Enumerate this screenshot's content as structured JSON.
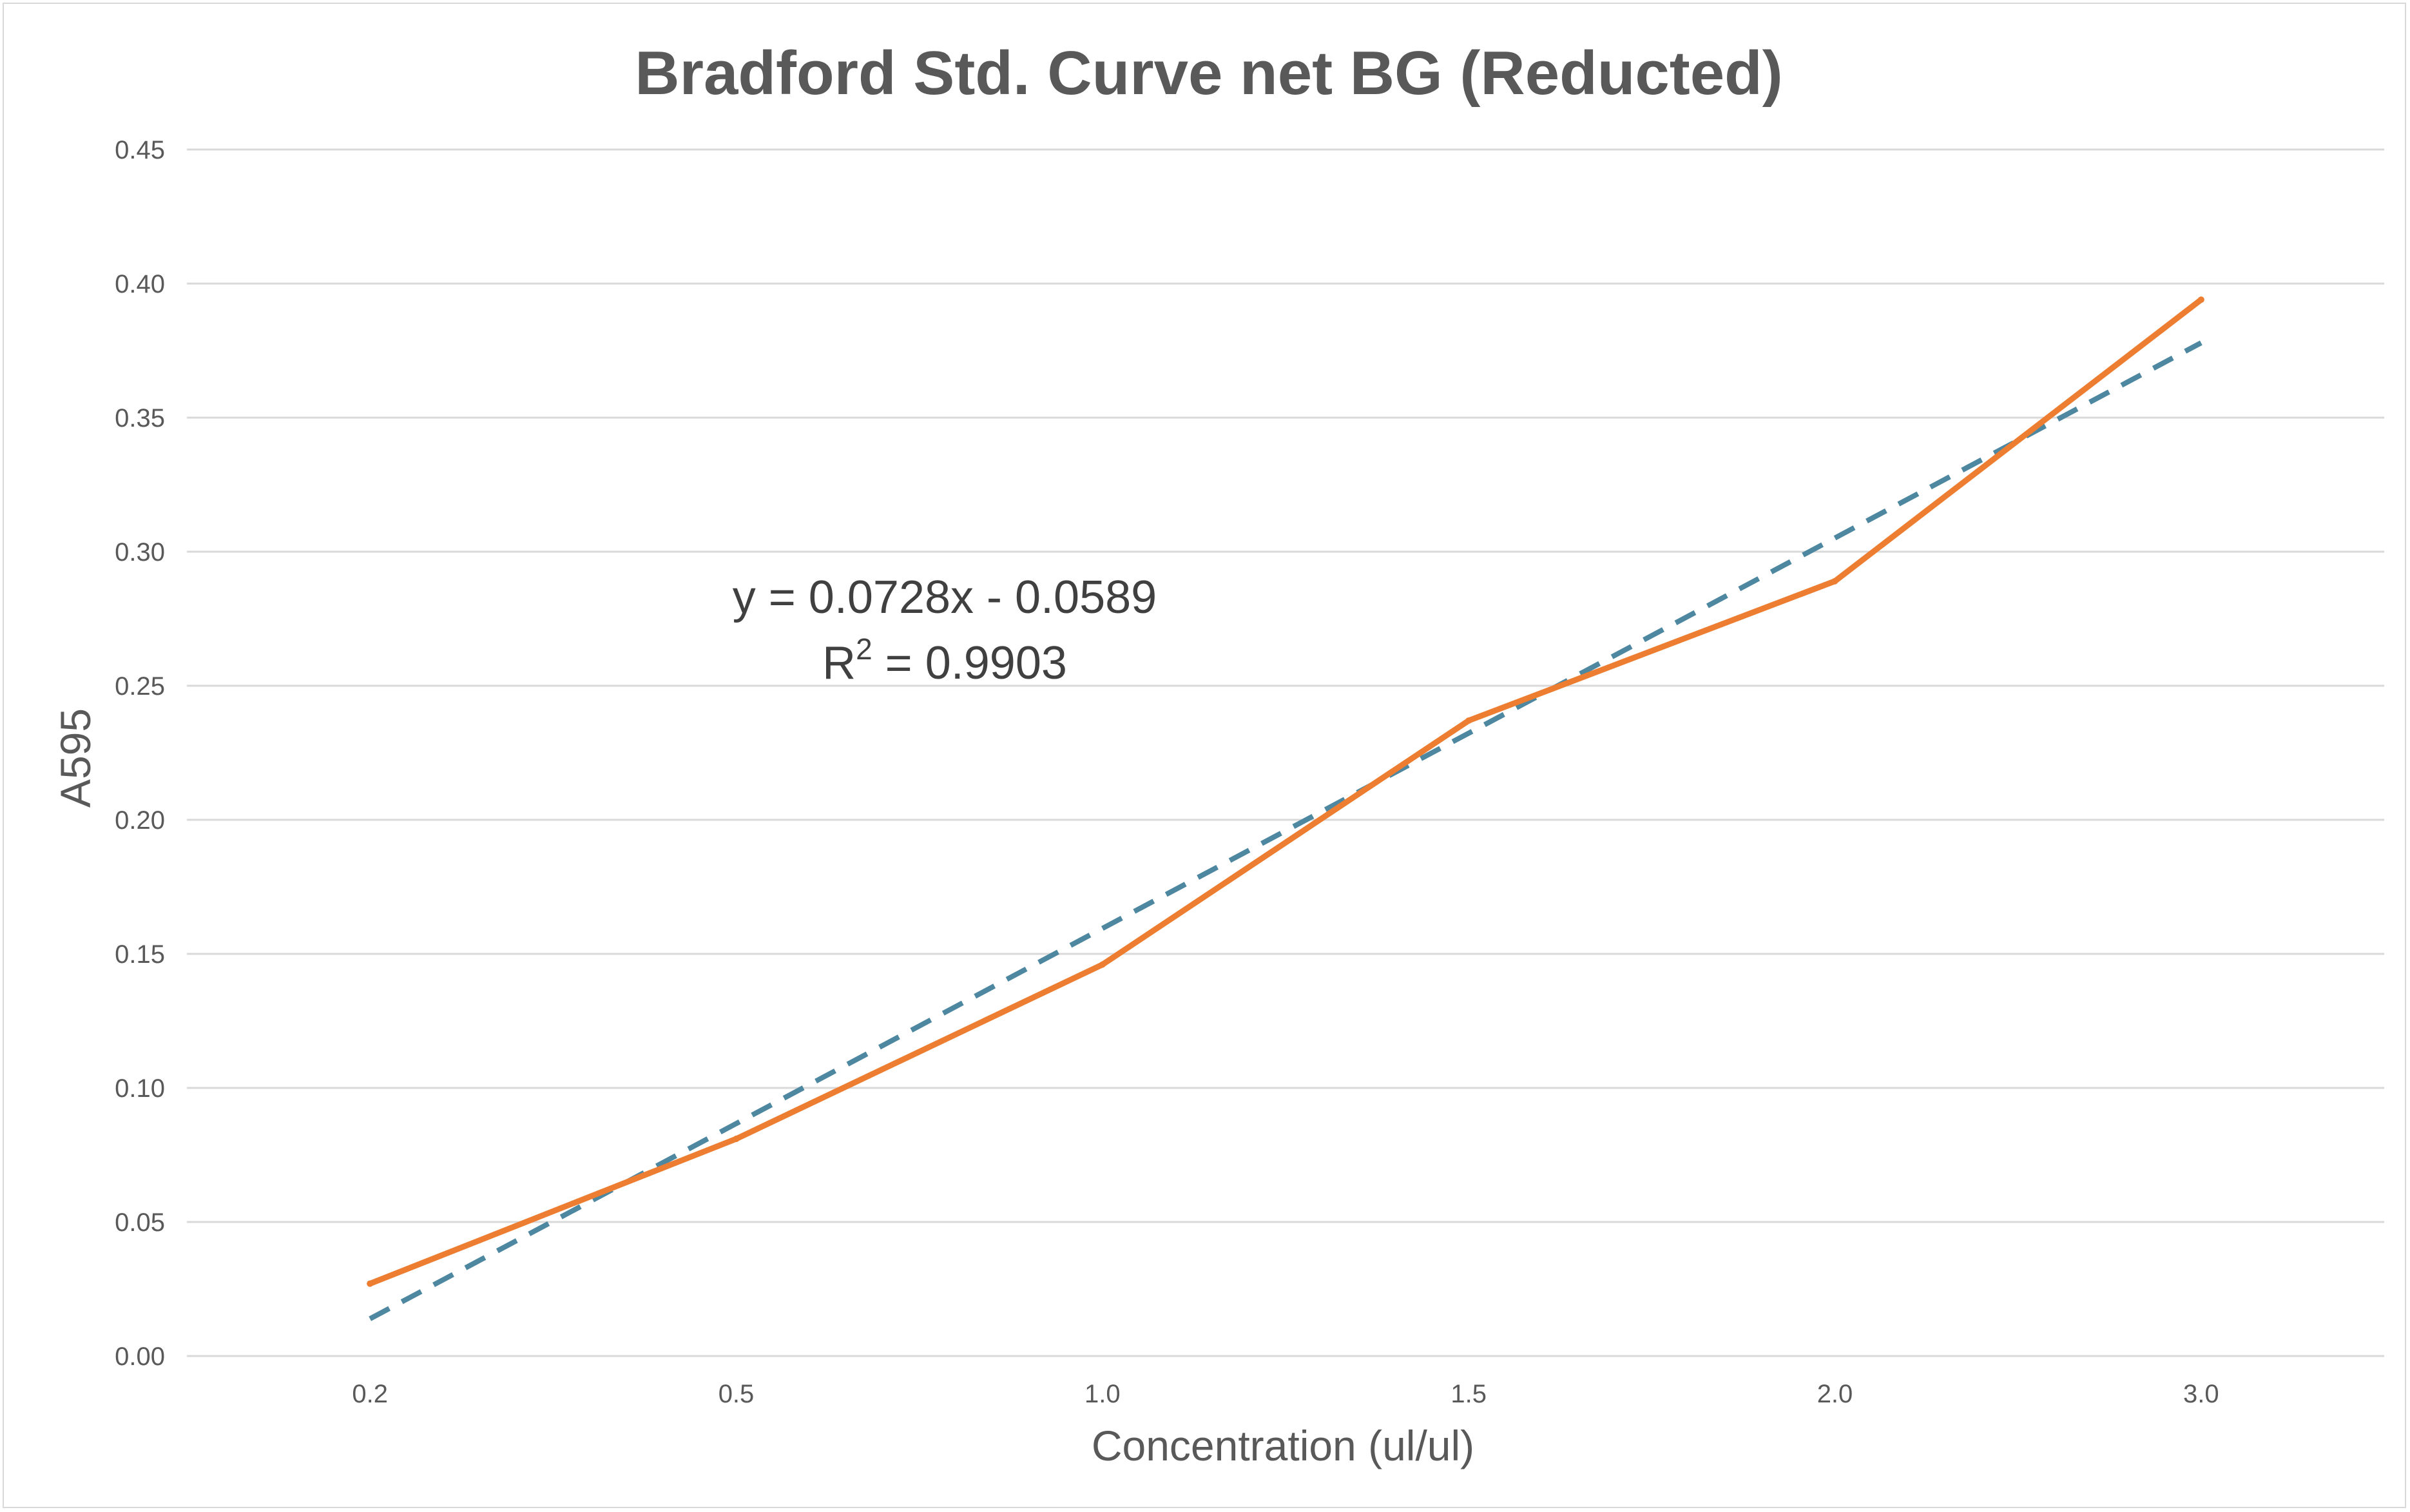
{
  "chart_data": {
    "type": "line",
    "title": "Bradford Std. Curve net BG (Reducted)",
    "xlabel": "Concentration (ul/ul)",
    "ylabel": "A595",
    "categories": [
      "0.2",
      "0.5",
      "1.0",
      "1.5",
      "2.0",
      "3.0"
    ],
    "ylim": [
      0,
      0.45
    ],
    "yticks": [
      "0.00",
      "0.05",
      "0.10",
      "0.15",
      "0.20",
      "0.25",
      "0.30",
      "0.35",
      "0.40",
      "0.45"
    ],
    "grid": true,
    "legend": "none",
    "series": [
      {
        "values": [
          0.027,
          0.081,
          0.146,
          0.237,
          0.289,
          0.394
        ],
        "color": "#ED7D31",
        "style": "solid"
      }
    ],
    "trendline": {
      "type": "linear",
      "color": "#4E87A0",
      "style": "dashed",
      "slope": 0.0728,
      "intercept": -0.0589,
      "equation": "y = 0.0728x - 0.0589",
      "r2_label": "R",
      "r2_exponent": "2",
      "r2_value": " = 0.9903"
    }
  }
}
